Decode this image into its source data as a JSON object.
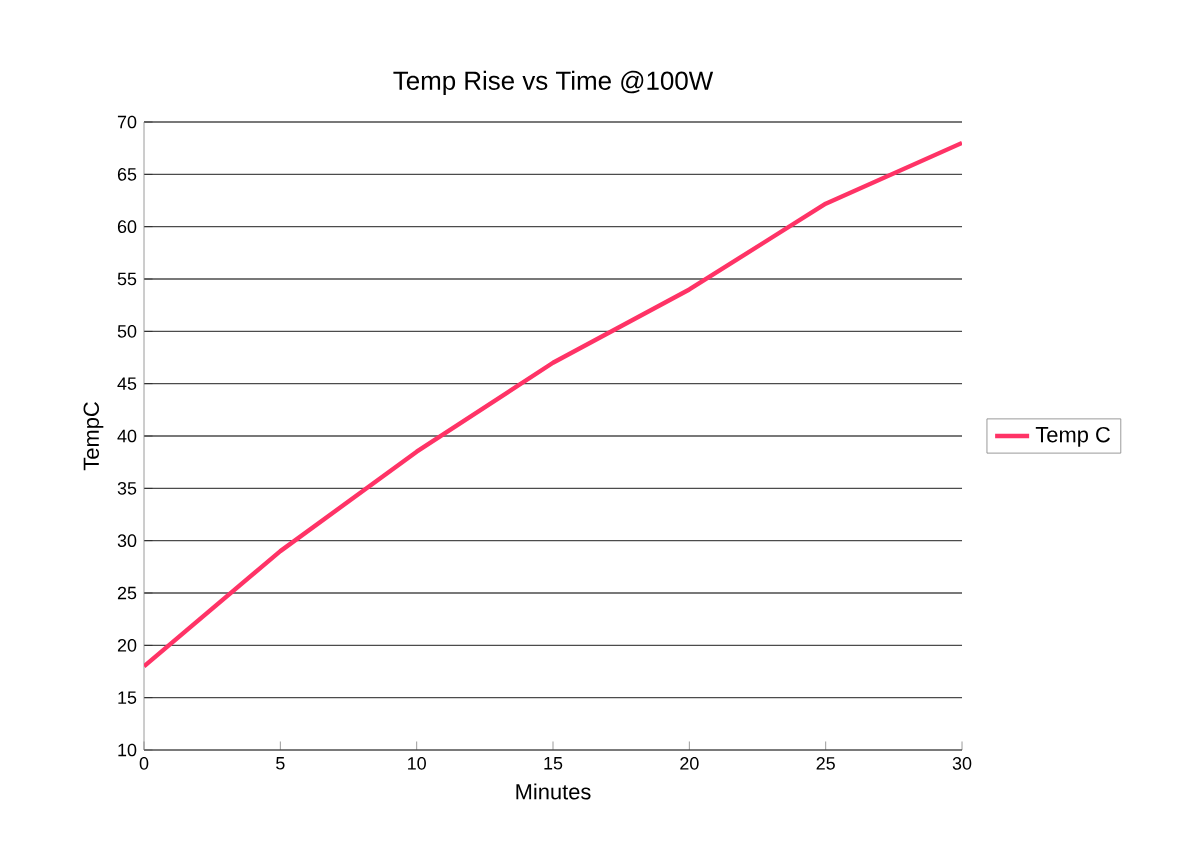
{
  "chart_data": {
    "type": "line",
    "title": "Temp Rise vs Time @100W",
    "xlabel": "Minutes",
    "ylabel": "TempC",
    "x": [
      0,
      5,
      10,
      15,
      20,
      25,
      30
    ],
    "series": [
      {
        "name": "Temp C",
        "color": "#ff3366",
        "values": [
          18,
          29,
          38.5,
          47,
          54,
          62.2,
          68
        ]
      }
    ],
    "xlim": [
      0,
      30
    ],
    "xticks": [
      0,
      5,
      10,
      15,
      20,
      25,
      30
    ],
    "ylim": [
      10,
      70
    ],
    "yticks": [
      10,
      15,
      20,
      25,
      30,
      35,
      40,
      45,
      50,
      55,
      60,
      65,
      70
    ],
    "grid": "y",
    "legend": "right",
    "marker": "none",
    "line_style": "solid"
  }
}
